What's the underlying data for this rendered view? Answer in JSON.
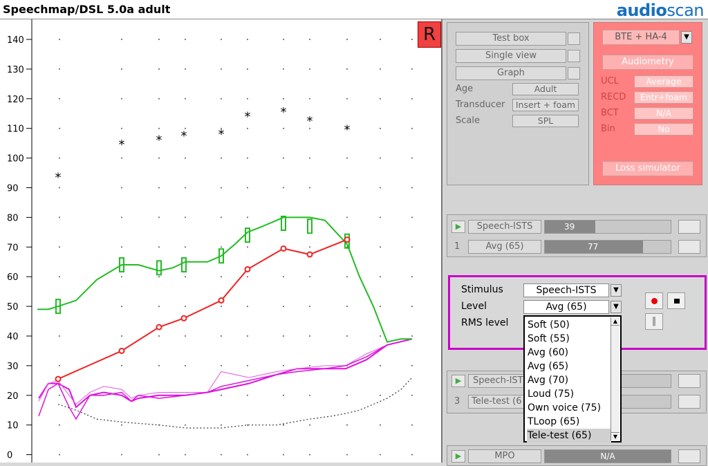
{
  "window": {
    "title": "Speechmap/DSL 5.0a adult",
    "brand_a": "audio",
    "brand_b": "scan"
  },
  "ear_badge": "R",
  "y_ticks": [
    "140",
    "130",
    "120",
    "110",
    "100",
    "90",
    "80",
    "70",
    "60",
    "50",
    "40",
    "30",
    "20",
    "10",
    "0"
  ],
  "setup": {
    "test_box": "Test box",
    "single_view": "Single view",
    "graph": "Graph",
    "age_label": "Age",
    "age_value": "Adult",
    "transducer_label": "Transducer",
    "transducer_value": "Insert + foam",
    "scale_label": "Scale",
    "scale_value": "SPL"
  },
  "hearing": {
    "device": "BTE + HA-4",
    "audiometry": "Audiometry",
    "ucl_label": "UCL",
    "ucl_value": "Average",
    "recd_label": "RECD",
    "recd_value": "Entr+foam",
    "bct_label": "BCT",
    "bct_value": "N/A",
    "bin_label": "Bin",
    "bin_value": "No",
    "loss_sim": "Loss simulator"
  },
  "tests": [
    {
      "name": "Speech-ISTS",
      "meter_value": "39",
      "meter_level": 0.4,
      "index": "1",
      "level": "Avg (65)",
      "level_meter_value": "77",
      "level_meter_level": 0.78
    },
    {
      "name": "Speech-IST",
      "index": "3",
      "level": "Tele-test (6"
    }
  ],
  "mpo": {
    "name": "MPO",
    "value": "N/A"
  },
  "stimulus": {
    "stimulus_label": "Stimulus",
    "stimulus_value": "Speech-ISTS",
    "level_label": "Level",
    "level_value": "Avg (65)",
    "rms_label": "RMS level"
  },
  "level_options": [
    "Soft (50)",
    "Soft (55)",
    "Avg (60)",
    "Avg (65)",
    "Avg (70)",
    "Loud (75)",
    "Own voice (75)",
    "TLoop (65)",
    "Tele-test (65)"
  ],
  "selected_option": "Tele-test (65)",
  "colors": {
    "green_curve": "#22bb22",
    "red_curve": "#ee2222",
    "magenta_curve": "#dd11dd",
    "stim_border": "#c800c8"
  },
  "chart_data": {
    "type": "line",
    "y_range": [
      0,
      145
    ],
    "ucl_points": [
      94,
      105,
      106.5,
      108,
      108.5,
      114.5,
      116,
      113,
      110
    ],
    "target_points": [
      25.5,
      35,
      43,
      46,
      52,
      62.5,
      69.5,
      67.5,
      72.5
    ],
    "green_target_marks": [
      50,
      64,
      63,
      64,
      67,
      74,
      78,
      77,
      72
    ],
    "threshold_points": [
      17,
      15,
      12,
      11,
      10,
      9,
      9,
      10,
      10,
      12,
      13,
      14,
      15,
      17,
      19,
      22,
      26
    ]
  }
}
